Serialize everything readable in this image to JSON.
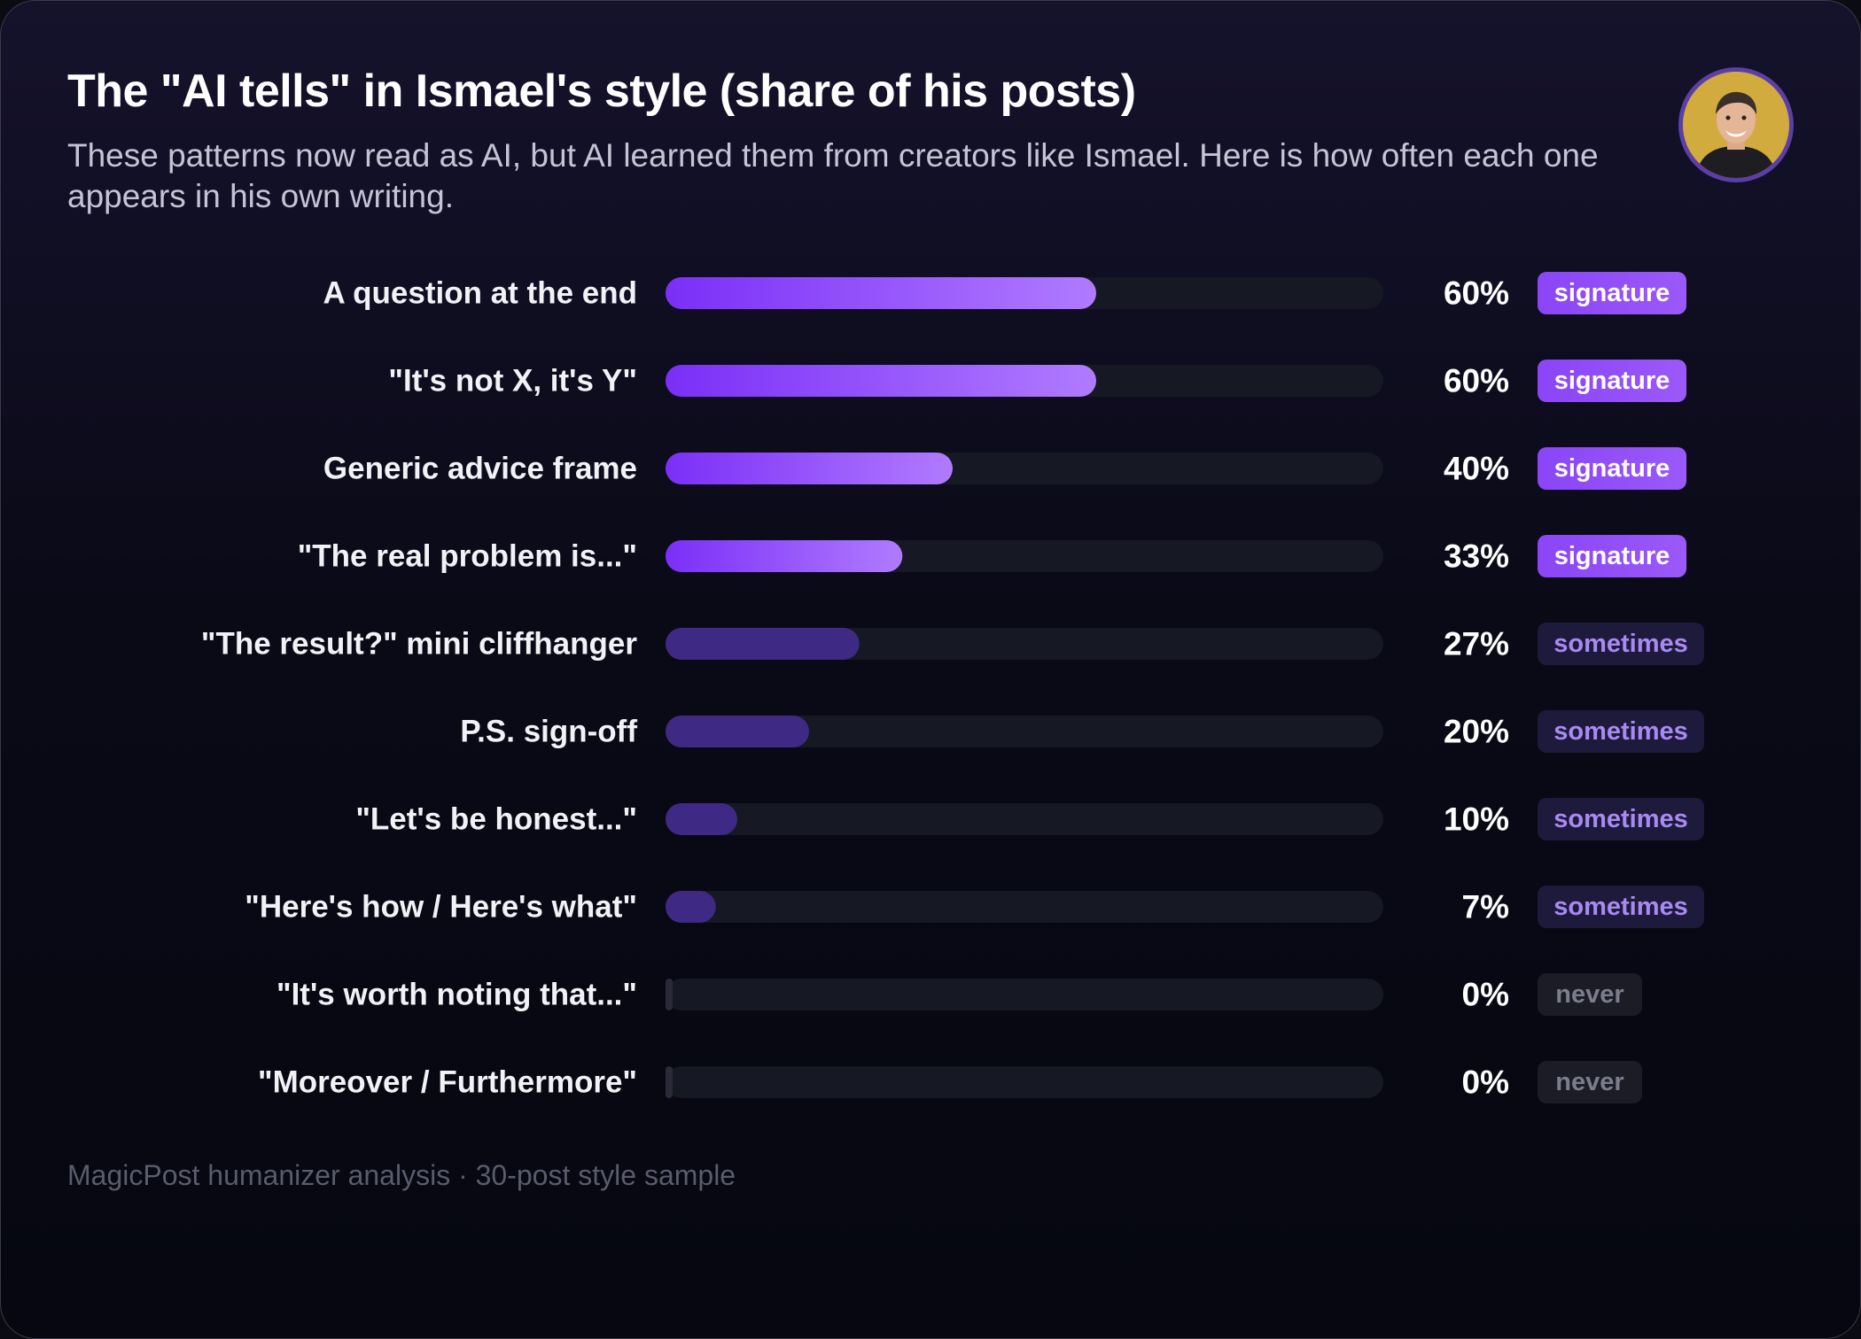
{
  "title": "The \"AI tells\" in Ismael's style (share of his posts)",
  "subtitle": "These patterns now read as AI, but AI learned them from creators like Ismael. Here is how often each one appears in his own writing.",
  "footer": "MagicPost humanizer analysis · 30-post style sample",
  "avatar_icon": "person-portrait-icon",
  "colors": {
    "signature_bar_start": "#7b2ff7",
    "signature_bar_end": "#b07bff",
    "sometimes_bar": "#3e2a84",
    "track": "#161823",
    "signature_badge_bg": "#9b59f8",
    "signature_badge_text": "#ffffff",
    "sometimes_badge_bg": "#1e1a3c",
    "sometimes_badge_text": "#a98af2",
    "never_badge_bg": "#1b1c26",
    "never_badge_text": "#7c7d8c"
  },
  "chart_data": {
    "type": "bar",
    "orientation": "horizontal",
    "title": "The \"AI tells\" in Ismael's style (share of his posts)",
    "xlim": [
      0,
      100
    ],
    "unit": "%",
    "grid": false,
    "categories": [
      "A question at the end",
      "\"It's not X, it's Y\"",
      "Generic advice frame",
      "\"The real problem is...\"",
      "\"The result?\" mini cliffhanger",
      "P.S. sign-off",
      "\"Let's be honest...\"",
      "\"Here's how / Here's what\"",
      "\"It's worth noting that...\"",
      "\"Moreover / Furthermore\""
    ],
    "values": [
      60,
      60,
      40,
      33,
      27,
      20,
      10,
      7,
      0,
      0
    ],
    "value_labels": [
      "60%",
      "60%",
      "40%",
      "33%",
      "27%",
      "20%",
      "10%",
      "7%",
      "0%",
      "0%"
    ],
    "tiers": [
      "signature",
      "signature",
      "signature",
      "signature",
      "sometimes",
      "sometimes",
      "sometimes",
      "sometimes",
      "never",
      "never"
    ]
  }
}
